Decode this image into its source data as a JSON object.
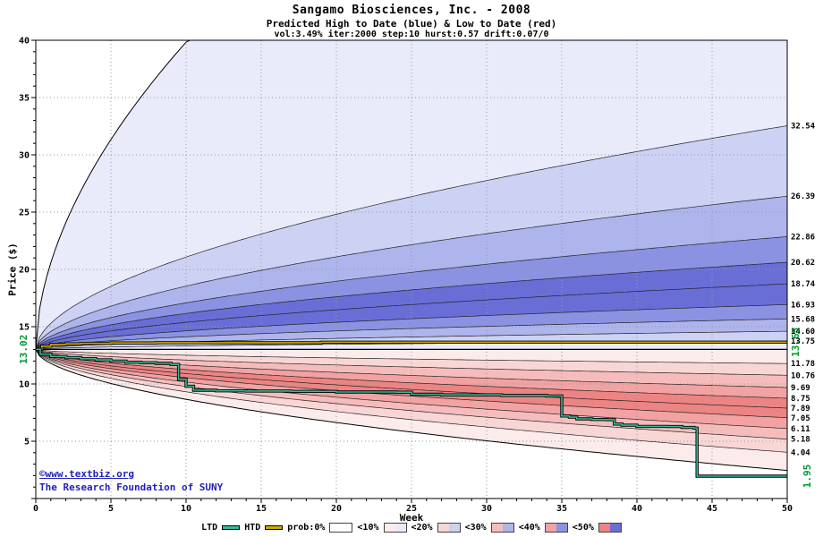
{
  "watermark": {
    "line1": "©www.textbiz.org",
    "line2": "The Research Foundation of SUNY",
    "color": "#2222bb"
  },
  "legend": {
    "ltd_label": "LTD",
    "htd_label": "HTD",
    "ltd_color": "#33bb99",
    "htd_color": "#d1a800",
    "prob_items": [
      {
        "label": "prob:0%",
        "left": "#ffffff",
        "right": "#ffffff"
      },
      {
        "label": "<10%",
        "left": "#fcebeb",
        "right": "#e9ebfa"
      },
      {
        "label": "<20%",
        "left": "#f9d6d6",
        "right": "#cdd1f4"
      },
      {
        "label": "<30%",
        "left": "#f6bcbc",
        "right": "#aeb4ec"
      },
      {
        "label": "<40%",
        "left": "#f2a2a2",
        "right": "#8b92e2"
      },
      {
        "label": "<50%",
        "left": "#ec8484",
        "right": "#696ed7"
      }
    ]
  },
  "chart_data": {
    "type": "area",
    "title": "Sangamo Biosciences, Inc. - 2008",
    "subtitle": "Predicted High to Date (blue) &  Low to Date (red)",
    "params": "vol:3.49% iter:2000 step:10 hurst:0.57 drift:0.07/0",
    "xlabel": "Week",
    "ylabel": "Price ($)",
    "xlim": [
      0,
      50
    ],
    "ylim": [
      0,
      40
    ],
    "x_tick_step": 5,
    "y_tick_step": 5,
    "grid": true,
    "grid_color": "#999999",
    "start_price": 13.02,
    "curve_exponent": 0.55,
    "high_boundaries": [
      "32.54",
      "26.39",
      "22.86",
      "20.62",
      "18.74",
      "16.93",
      "15.68",
      "14.60",
      "13.75"
    ],
    "high_envelope_end": 78,
    "low_boundaries": [
      "11.78",
      "10.76",
      "9.69",
      "8.75",
      "7.89",
      "7.05",
      "6.11",
      "5.18",
      "4.04"
    ],
    "low_envelope_end": 2.45,
    "blue_shades": [
      "#e9ebfa",
      "#cdd1f4",
      "#aeb4ec",
      "#8b92e2",
      "#696ed7"
    ],
    "red_shades": [
      "#fcebeb",
      "#f9d6d6",
      "#f6bcbc",
      "#f2a2a2",
      "#ec8484"
    ],
    "ltd_series": [
      [
        0,
        13.02
      ],
      [
        0.3,
        12.6
      ],
      [
        1,
        12.4
      ],
      [
        2,
        12.3
      ],
      [
        3,
        12.2
      ],
      [
        4,
        12.1
      ],
      [
        5,
        12.0
      ],
      [
        6,
        11.9
      ],
      [
        7,
        11.85
      ],
      [
        8,
        11.8
      ],
      [
        9,
        11.7
      ],
      [
        9.5,
        10.4
      ],
      [
        10,
        9.8
      ],
      [
        10.5,
        9.45
      ],
      [
        12,
        9.4
      ],
      [
        14,
        9.38
      ],
      [
        17,
        9.35
      ],
      [
        20,
        9.3
      ],
      [
        24,
        9.28
      ],
      [
        25,
        9.1
      ],
      [
        27,
        9.05
      ],
      [
        31,
        9.0
      ],
      [
        34,
        8.95
      ],
      [
        35,
        7.2
      ],
      [
        35.5,
        7.1
      ],
      [
        36,
        6.95
      ],
      [
        37,
        6.9
      ],
      [
        38,
        6.88
      ],
      [
        38.5,
        6.5
      ],
      [
        39,
        6.4
      ],
      [
        40,
        6.3
      ],
      [
        42,
        6.28
      ],
      [
        43,
        6.2
      ],
      [
        43.8,
        6.15
      ],
      [
        44,
        1.95
      ],
      [
        50,
        1.95
      ]
    ],
    "htd_series": [
      [
        0,
        13.02
      ],
      [
        0.4,
        13.3
      ],
      [
        1,
        13.45
      ],
      [
        2,
        13.5
      ],
      [
        3,
        13.55
      ],
      [
        5,
        13.58
      ],
      [
        8,
        13.6
      ],
      [
        18,
        13.6
      ],
      [
        19,
        13.65
      ],
      [
        50,
        13.65
      ]
    ],
    "labels": {
      "start_price": "13.02",
      "htd_final": "13.65",
      "ltd_final": "1.95"
    },
    "label_color": "#009933"
  }
}
